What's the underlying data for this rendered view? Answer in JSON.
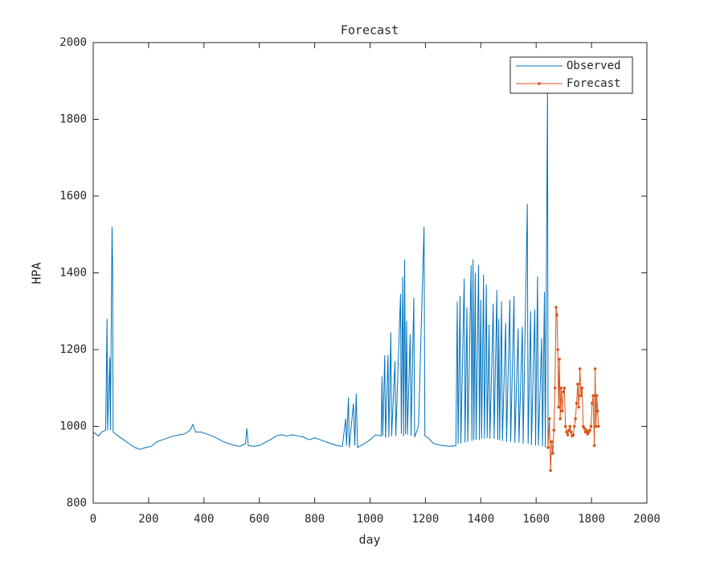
{
  "chart_data": {
    "type": "line",
    "title": "Forecast",
    "xlabel": "day",
    "ylabel": "HPA",
    "xlim": [
      0,
      2000
    ],
    "xticks": [
      0,
      200,
      400,
      600,
      800,
      1000,
      1200,
      1400,
      1600,
      1800,
      2000
    ],
    "ylim": [
      800,
      2000
    ],
    "yticks": [
      800,
      1000,
      1200,
      1400,
      1600,
      1800,
      2000
    ],
    "grid": false,
    "legend": "northeast",
    "series": [
      {
        "name": "Observed",
        "color": "#0072bd",
        "marker": "none",
        "x": [
          0,
          10,
          20,
          30,
          45,
          50,
          52,
          60,
          62,
          68,
          70,
          72,
          90,
          110,
          130,
          150,
          170,
          190,
          210,
          230,
          250,
          270,
          290,
          310,
          330,
          350,
          360,
          370,
          390,
          410,
          430,
          450,
          470,
          490,
          510,
          530,
          550,
          555,
          560,
          580,
          600,
          620,
          640,
          660,
          680,
          700,
          720,
          740,
          760,
          780,
          800,
          820,
          840,
          860,
          880,
          900,
          912,
          915,
          922,
          925,
          940,
          945,
          950,
          955,
          980,
          1000,
          1020,
          1040,
          1043,
          1046,
          1053,
          1056,
          1065,
          1068,
          1075,
          1078,
          1090,
          1093,
          1110,
          1113,
          1118,
          1121,
          1125,
          1128,
          1132,
          1135,
          1145,
          1148,
          1158,
          1161,
          1175,
          1195,
          1198,
          1210,
          1230,
          1260,
          1290,
          1310,
          1315,
          1318,
          1325,
          1328,
          1340,
          1343,
          1350,
          1353,
          1365,
          1368,
          1372,
          1375,
          1380,
          1383,
          1392,
          1395,
          1400,
          1403,
          1410,
          1413,
          1420,
          1423,
          1430,
          1433,
          1445,
          1448,
          1458,
          1461,
          1465,
          1468,
          1475,
          1478,
          1490,
          1493,
          1505,
          1508,
          1520,
          1523,
          1535,
          1538,
          1550,
          1553,
          1568,
          1571,
          1580,
          1583,
          1595,
          1598,
          1605,
          1608,
          1620,
          1623,
          1630,
          1633,
          1641,
          1643
        ],
        "values": [
          985,
          980,
          975,
          985,
          990,
          1280,
          990,
          1180,
          990,
          1520,
          1420,
          985,
          975,
          965,
          955,
          945,
          940,
          945,
          948,
          960,
          965,
          970,
          975,
          978,
          980,
          990,
          1005,
          985,
          985,
          980,
          975,
          968,
          960,
          955,
          950,
          948,
          955,
          995,
          950,
          948,
          950,
          958,
          965,
          975,
          978,
          975,
          978,
          975,
          972,
          965,
          970,
          965,
          960,
          955,
          950,
          948,
          1020,
          950,
          1075,
          945,
          1060,
          950,
          1085,
          945,
          955,
          965,
          978,
          975,
          1130,
          975,
          1185,
          970,
          1185,
          972,
          1245,
          975,
          1170,
          975,
          1345,
          980,
          1390,
          975,
          1435,
          980,
          1275,
          978,
          1240,
          975,
          1335,
          972,
          1000,
          1520,
          975,
          970,
          955,
          950,
          948,
          950,
          1325,
          955,
          1340,
          955,
          1385,
          958,
          1310,
          960,
          1420,
          962,
          1435,
          965,
          1400,
          965,
          1420,
          965,
          1330,
          968,
          1395,
          968,
          1370,
          970,
          1265,
          968,
          1320,
          968,
          1355,
          965,
          1280,
          965,
          1325,
          962,
          1270,
          960,
          1330,
          960,
          1340,
          958,
          1255,
          958,
          1260,
          955,
          1580,
          955,
          1300,
          952,
          1305,
          950,
          1390,
          950,
          1230,
          948,
          1350,
          945,
          1880,
          945
        ]
      },
      {
        "name": "Forecast",
        "color": "#d95319",
        "marker": "dot",
        "x": [
          1643,
          1648,
          1652,
          1656,
          1660,
          1664,
          1668,
          1672,
          1675,
          1678,
          1681,
          1684,
          1687,
          1690,
          1694,
          1698,
          1702,
          1706,
          1710,
          1714,
          1718,
          1722,
          1726,
          1730,
          1734,
          1738,
          1742,
          1746,
          1750,
          1754,
          1758,
          1762,
          1766,
          1770,
          1774,
          1778,
          1782,
          1786,
          1790,
          1794,
          1798,
          1802,
          1806,
          1810,
          1813,
          1816,
          1819,
          1822,
          1825
        ],
        "values": [
          945,
          1020,
          885,
          960,
          930,
          990,
          1100,
          1310,
          1290,
          1200,
          1050,
          1175,
          1020,
          1100,
          1040,
          1090,
          1100,
          1000,
          985,
          978,
          990,
          1000,
          985,
          975,
          978,
          1000,
          1020,
          1060,
          1110,
          1050,
          1150,
          1080,
          1100,
          1000,
          995,
          985,
          990,
          980,
          985,
          990,
          1000,
          1060,
          1080,
          950,
          1150,
          1000,
          1080,
          1040,
          1000
        ]
      }
    ]
  }
}
